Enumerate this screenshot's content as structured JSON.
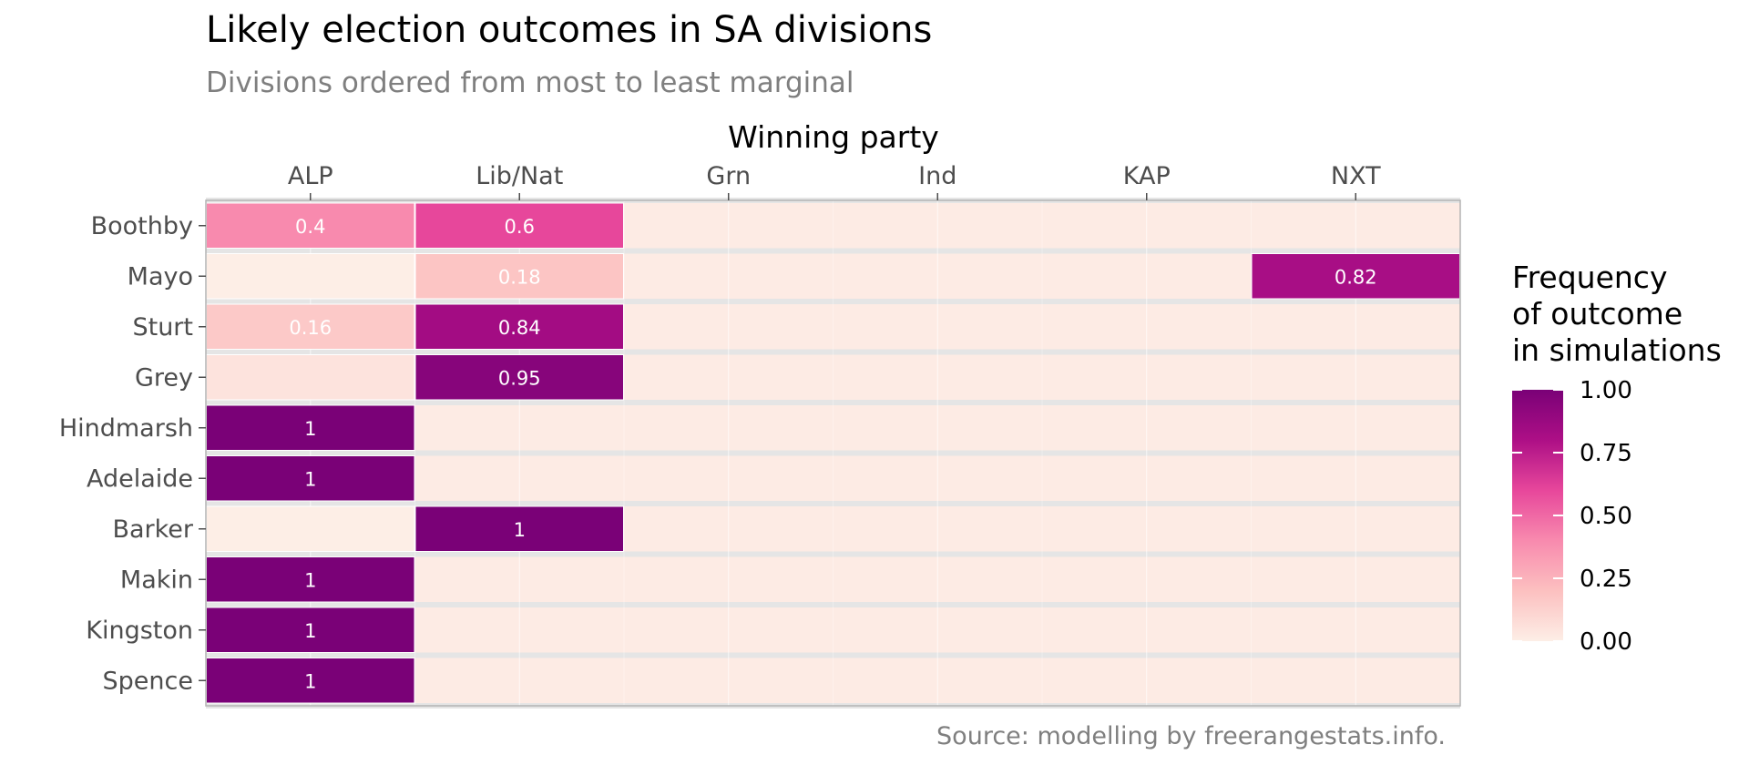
{
  "chart_data": {
    "type": "heatmap",
    "title": "Likely election outcomes in SA divisions",
    "subtitle": "Divisions ordered from most to least marginal",
    "xlabel": "Winning party",
    "ylabel": "",
    "x_position": "top",
    "parties": [
      "ALP",
      "Lib/Nat",
      "Grn",
      "Ind",
      "KAP",
      "NXT"
    ],
    "divisions": [
      "Boothby",
      "Mayo",
      "Sturt",
      "Grey",
      "Hindmarsh",
      "Adelaide",
      "Barker",
      "Makin",
      "Kingston",
      "Spence"
    ],
    "cells": [
      {
        "division": "Boothby",
        "party": "ALP",
        "value": 0.4,
        "label": "0.4"
      },
      {
        "division": "Boothby",
        "party": "Lib/Nat",
        "value": 0.6,
        "label": "0.6"
      },
      {
        "division": "Mayo",
        "party": "ALP",
        "value": 0.0,
        "label": ""
      },
      {
        "division": "Mayo",
        "party": "Lib/Nat",
        "value": 0.18,
        "label": "0.18"
      },
      {
        "division": "Mayo",
        "party": "NXT",
        "value": 0.82,
        "label": "0.82"
      },
      {
        "division": "Sturt",
        "party": "ALP",
        "value": 0.16,
        "label": "0.16"
      },
      {
        "division": "Sturt",
        "party": "Lib/Nat",
        "value": 0.84,
        "label": "0.84"
      },
      {
        "division": "Grey",
        "party": "ALP",
        "value": 0.05,
        "label": ""
      },
      {
        "division": "Grey",
        "party": "Lib/Nat",
        "value": 0.95,
        "label": "0.95"
      },
      {
        "division": "Hindmarsh",
        "party": "ALP",
        "value": 1,
        "label": "1"
      },
      {
        "division": "Adelaide",
        "party": "ALP",
        "value": 1,
        "label": "1"
      },
      {
        "division": "Barker",
        "party": "ALP",
        "value": 0.0,
        "label": ""
      },
      {
        "division": "Barker",
        "party": "Lib/Nat",
        "value": 1,
        "label": "1"
      },
      {
        "division": "Makin",
        "party": "ALP",
        "value": 1,
        "label": "1"
      },
      {
        "division": "Kingston",
        "party": "ALP",
        "value": 1,
        "label": "1"
      },
      {
        "division": "Spence",
        "party": "ALP",
        "value": 1,
        "label": "1"
      }
    ],
    "legend": {
      "title_lines": [
        "Frequency",
        "of outcome",
        "in simulations"
      ],
      "ticks": [
        "1.00",
        "0.75",
        "0.50",
        "0.25",
        "0.00"
      ],
      "tick_values": [
        1.0,
        0.75,
        0.5,
        0.25,
        0.0
      ],
      "placement": "right"
    },
    "color_scale": {
      "stops": [
        "#fdeee6",
        "#fcc0c0",
        "#f88aae",
        "#e7479b",
        "#ad0f86",
        "#7a0177"
      ],
      "background": "#fdebe4",
      "empty_row_separator": "#e5e5e5",
      "cell_border": "#ffffff"
    },
    "caption": "Source: modelling by freerangestats.info.",
    "grid": true
  }
}
